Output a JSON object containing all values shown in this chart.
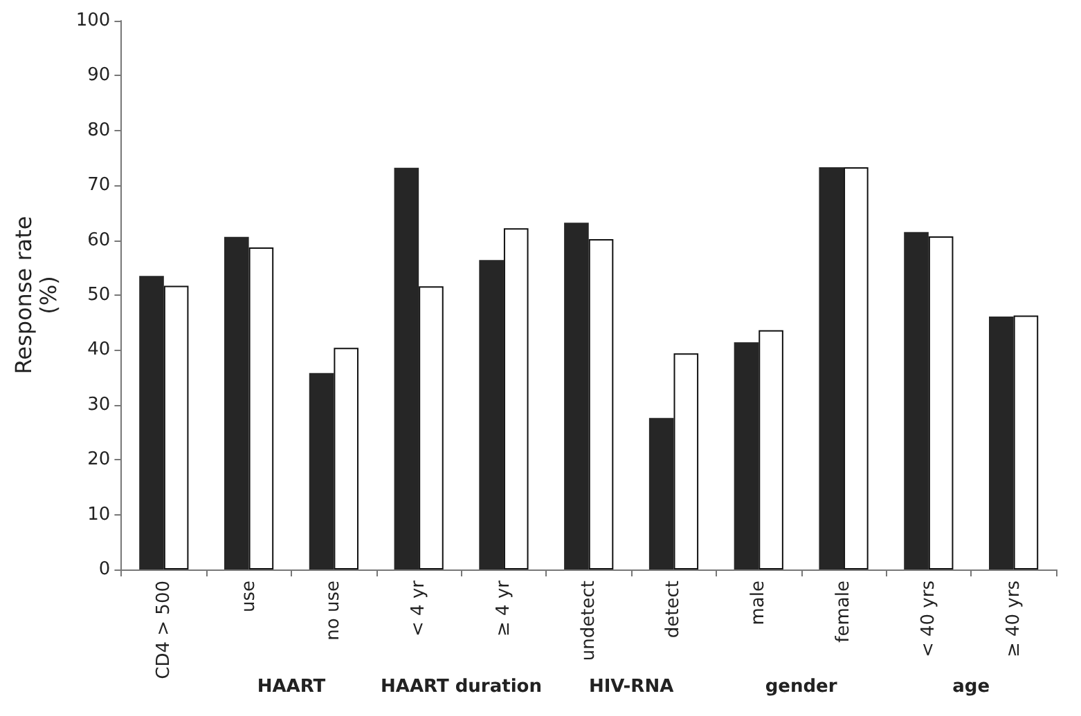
{
  "chart_data": {
    "type": "bar",
    "categories": [
      "CD4 > 500",
      "use",
      "no use",
      "< 4 yr",
      "≥ 4 yr",
      "undetect",
      "detect",
      "male",
      "female",
      "< 40 yrs",
      "≥ 40 yrs"
    ],
    "series": [
      {
        "color": "#262626",
        "values": [
          53.5,
          60.6,
          35.8,
          73.2,
          56.4,
          63.2,
          27.6,
          41.4,
          73.3,
          61.5,
          46.1
        ]
      },
      {
        "color": "#ffffff",
        "values": [
          51.7,
          58.7,
          40.4,
          51.6,
          62.2,
          60.2,
          39.4,
          43.6,
          73.3,
          60.7,
          46.3
        ]
      }
    ],
    "ylabel": "Response rate\n(%)",
    "ylim": [
      0,
      100
    ],
    "yticks": [
      0,
      10,
      20,
      30,
      40,
      50,
      60,
      70,
      80,
      90,
      100
    ],
    "annotations": [
      "HAART",
      "HAART duration",
      "HIV-RNA",
      "gender",
      "age"
    ]
  }
}
